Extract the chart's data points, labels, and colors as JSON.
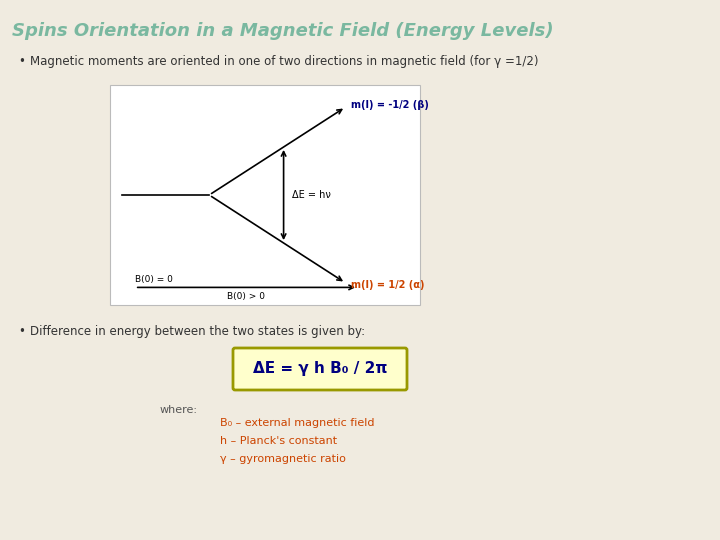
{
  "title": "Spins Orientation in a Magnetic Field (Energy Levels)",
  "title_color": "#7ab8a0",
  "bg_color": "#f0ebe0",
  "bullet1": "Magnetic moments are oriented in one of two directions in magnetic field (for γ =1/2)",
  "bullet2": "Difference in energy between the two states is given by:",
  "diagram_bg": "#ffffff",
  "formula": "ΔE = γ h B₀ / 2π",
  "formula_box_bg": "#ffffcc",
  "formula_box_edge": "#999900",
  "formula_color": "#000080",
  "where_text": "where:",
  "where_color": "#555555",
  "b0_line1": "B₀ – external magnetic field",
  "b0_line2": "h – Planck's constant",
  "b0_line3": "γ – gyromagnetic ratio",
  "def_color": "#cc4400",
  "label_alpha": "m(I) = 1/2 (α)",
  "label_beta": "m(I) = -1/2 (β)",
  "label_alpha_color": "#cc4400",
  "label_beta_color": "#000080",
  "dE_label": "ΔE = hν",
  "B0_label": "B(0) = 0",
  "B0gt_label": "B(0) > 0",
  "arrow_color": "#000000",
  "bullet_color": "#333333",
  "line_color": "#000000",
  "title_fontsize": 13,
  "bullet_fontsize": 8.5,
  "diagram_label_fontsize": 7,
  "formula_fontsize": 11,
  "where_fontsize": 8,
  "def_fontsize": 8
}
